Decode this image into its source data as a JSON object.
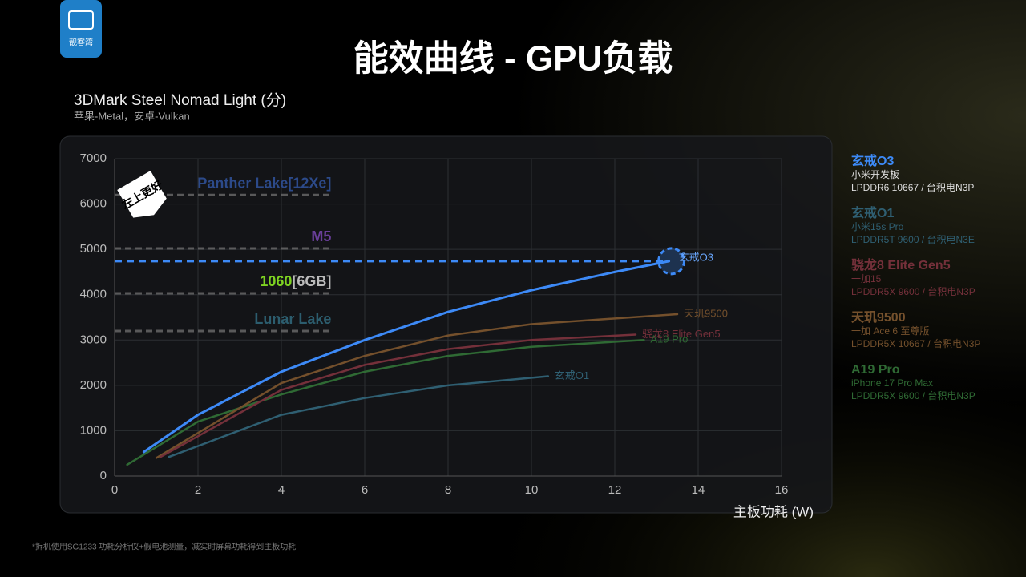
{
  "logo": "靓客湾",
  "chart_data": {
    "type": "line",
    "title": "能效曲线 - GPU负载",
    "subtitle": "3DMark Steel Nomad Light (分)",
    "subtitle_note": "苹果-Metal，安卓-Vulkan",
    "badge": "左上更好",
    "x_label": "主板功耗 (W)",
    "footnote": "*拆机使用SG1233 功耗分析仪+假电池测量，减实时屏幕功耗得到主板功耗",
    "xlim": [
      0,
      16
    ],
    "xticks": [
      0,
      2,
      4,
      6,
      8,
      10,
      12,
      14,
      16
    ],
    "ylim": [
      0,
      7000
    ],
    "yticks": [
      0,
      1000,
      2000,
      3000,
      4000,
      5000,
      6000,
      7000
    ],
    "grid": true,
    "reference_lines": [
      {
        "label": "Panther Lake",
        "note": "[12Xe]",
        "value": 6200,
        "color": "#2c4a8a"
      },
      {
        "label": "M5",
        "note": "",
        "value": 5020,
        "color": "#6a3f9a"
      },
      {
        "label": "1060",
        "note": "[6GB]",
        "value": 4030,
        "color": "#7ed321"
      },
      {
        "label": "Lunar Lake",
        "note": "",
        "value": 3200,
        "color": "#2c5d6e"
      }
    ],
    "series": [
      {
        "name": "玄戒O3",
        "device": "小米开发板",
        "memory": "LPDDR6 10667 / 台积电N3P",
        "color": "#3d8af7",
        "x": [
          0.7,
          2,
          4,
          6,
          8,
          10,
          12,
          13.3
        ],
        "values": [
          530,
          1350,
          2300,
          3000,
          3620,
          4100,
          4500,
          4740
        ]
      },
      {
        "name": "玄戒O1",
        "device": "小米15s Pro",
        "memory": "LPDDR5T 9600 / 台积电N3E",
        "color": "#2f5f72",
        "x": [
          1.3,
          4,
          6,
          8,
          10.4
        ],
        "values": [
          420,
          1350,
          1720,
          2000,
          2200
        ]
      },
      {
        "name": "骁龙8 Elite Gen5",
        "device": "一加15",
        "memory": "LPDDR5X 9600 / 台积电N3P",
        "color": "#74303a",
        "x": [
          1.1,
          4,
          6,
          8,
          10,
          12.5
        ],
        "values": [
          420,
          1900,
          2450,
          2800,
          3000,
          3120
        ]
      },
      {
        "name": "天玑9500",
        "device": "一加 Ace 6 至尊版",
        "memory": "LPDDR5X 10667 / 台积电N3P",
        "color": "#74502c",
        "x": [
          1.0,
          4,
          6,
          8,
          10,
          13.5
        ],
        "values": [
          400,
          2050,
          2650,
          3100,
          3350,
          3570
        ]
      },
      {
        "name": "A19 Pro",
        "device": "iPhone 17 Pro Max",
        "memory": "LPDDR5X 9600 / 台积电N3P",
        "color": "#2f6a34",
        "x": [
          0.3,
          2,
          4,
          6,
          8,
          10,
          12.7
        ],
        "values": [
          250,
          1200,
          1800,
          2300,
          2650,
          2850,
          3000
        ]
      }
    ]
  }
}
